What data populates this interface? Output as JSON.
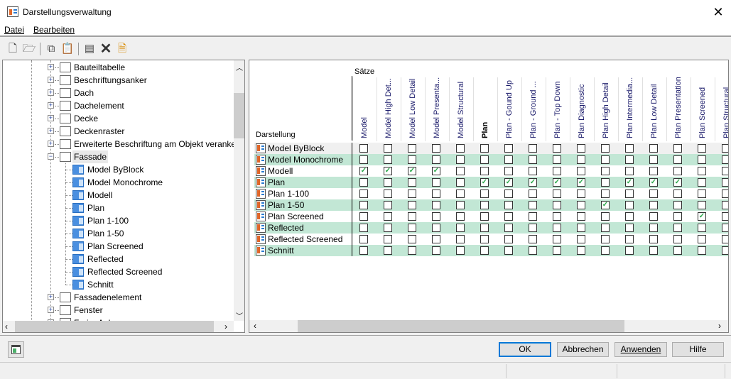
{
  "window": {
    "title": "Darstellungsverwaltung",
    "close_icon": "close-icon"
  },
  "menu": [
    {
      "label": "Datei"
    },
    {
      "label": "Bearbeiten"
    }
  ],
  "toolbar": [
    "new-icon",
    "open-icon",
    "copy-icon",
    "paste-icon",
    "purge-icon",
    "delete-icon",
    "edit-icon"
  ],
  "tree": {
    "items": [
      {
        "label": "Bauteiltabelle",
        "icon": "table-icon",
        "expanded": false
      },
      {
        "label": "Beschriftungsanker",
        "icon": "anchor-icon",
        "expanded": false
      },
      {
        "label": "Dach",
        "icon": "roof-icon",
        "expanded": false
      },
      {
        "label": "Dachelement",
        "icon": "roof-slab-icon",
        "expanded": false
      },
      {
        "label": "Decke",
        "icon": "slab-icon",
        "expanded": false
      },
      {
        "label": "Deckenraster",
        "icon": "ceiling-grid-icon",
        "expanded": false
      },
      {
        "label": "Erweiterte Beschriftung am Objekt veranke",
        "icon": "anchor-icon",
        "expanded": false
      },
      {
        "label": "Fassade",
        "icon": "curtain-wall-icon",
        "expanded": true,
        "selected": true,
        "children": [
          "Model ByBlock",
          "Model Monochrome",
          "Modell",
          "Plan",
          "Plan 1-100",
          "Plan 1-50",
          "Plan Screened",
          "Reflected",
          "Reflected Screened",
          "Schnitt"
        ]
      },
      {
        "label": "Fassadenelement",
        "icon": "curtain-wall-unit-icon",
        "expanded": false
      },
      {
        "label": "Fenster",
        "icon": "window-icon",
        "expanded": false
      },
      {
        "label": "Freier Anker",
        "icon": "free-anchor-icon",
        "expanded": false
      }
    ]
  },
  "grid": {
    "sets_label": "Sätze",
    "display_label": "Darstellung",
    "columns": [
      "Model",
      "Model High Det...",
      "Model Low Detail",
      "Model Presenta...",
      "Model Structural",
      "Plan",
      "Plan - Gound Up",
      "Plan - Ground ...",
      "Plan - Top Down",
      "Plan Diagnostic",
      "Plan High Detail",
      "Plan Intermedia...",
      "Plan Low Detail",
      "Plan Presentation",
      "Plan Screened",
      "Plan Structural"
    ],
    "bold_column": "Plan",
    "rows": [
      {
        "label": "Model ByBlock",
        "checked": []
      },
      {
        "label": "Model Monochrome",
        "checked": []
      },
      {
        "label": "Modell",
        "checked": [
          "Model",
          "Model High Det...",
          "Model Low Detail",
          "Model Presenta..."
        ]
      },
      {
        "label": "Plan",
        "checked": [
          "Plan",
          "Plan - Gound Up",
          "Plan - Ground ...",
          "Plan - Top Down",
          "Plan Diagnostic",
          "Plan Intermedia...",
          "Plan Low Detail",
          "Plan Presentation"
        ]
      },
      {
        "label": "Plan 1-100",
        "checked": []
      },
      {
        "label": "Plan 1-50",
        "checked": [
          "Plan High Detail"
        ]
      },
      {
        "label": "Plan Screened",
        "checked": [
          "Plan Screened"
        ]
      },
      {
        "label": "Reflected",
        "checked": []
      },
      {
        "label": "Reflected Screened",
        "checked": []
      },
      {
        "label": "Schnitt",
        "checked": []
      }
    ],
    "row_colors": {
      "alt": "#c2e7d5",
      "first": "#f0f0f0",
      "plain": "#ffffff"
    },
    "check_color": "#2aa84a"
  },
  "buttons": {
    "ok": "OK",
    "cancel": "Abbrechen",
    "apply": "Anwenden",
    "help": "Hilfe"
  }
}
